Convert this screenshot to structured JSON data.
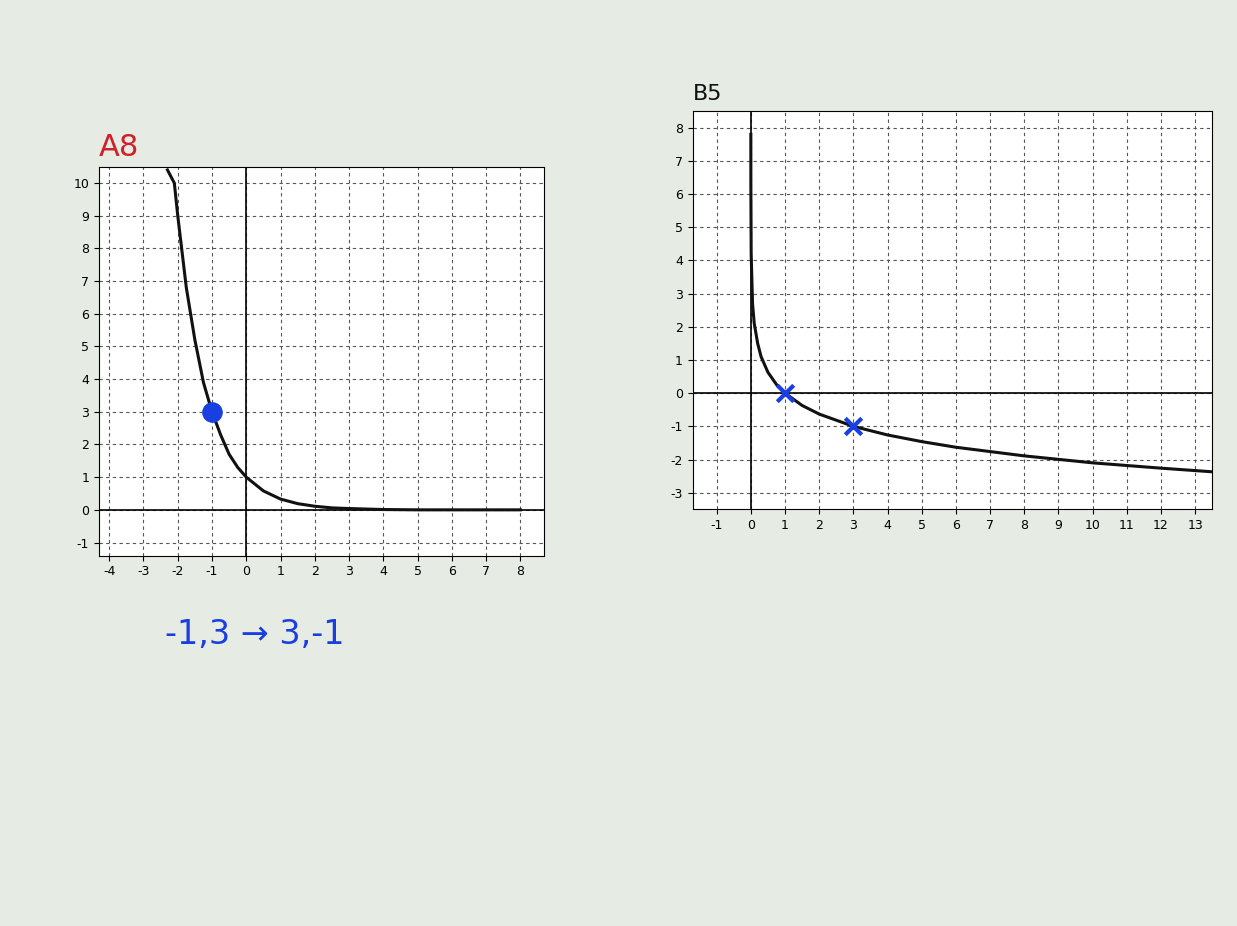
{
  "chart_data": [
    {
      "type": "line",
      "title": "A8",
      "series": [
        {
          "type": "line",
          "color": "#111111",
          "x": [
            -2.3,
            -2.1,
            -2.0,
            -1.75,
            -1.5,
            -1.25,
            -1.0,
            -0.75,
            -0.5,
            -0.25,
            0,
            0.5,
            1,
            1.5,
            2,
            2.5,
            3,
            4,
            5,
            6,
            7,
            8
          ],
          "values": [
            10.4,
            10,
            9,
            6.8,
            5.2,
            3.9,
            3,
            2.3,
            1.7,
            1.3,
            1,
            0.58,
            0.33,
            0.19,
            0.11,
            0.06,
            0.04,
            0.01,
            0,
            0,
            0,
            0
          ]
        },
        {
          "type": "scatter",
          "color": "#1a3fe0",
          "marker": "o",
          "x": [
            -1
          ],
          "values": [
            3
          ]
        }
      ],
      "annotations": [
        "-1,3 → 3,-1"
      ],
      "xlim": [
        -4.3,
        8.7
      ],
      "xticks": [
        -4,
        -3,
        -2,
        -1,
        0,
        1,
        2,
        3,
        4,
        5,
        6,
        7,
        8
      ],
      "ylim": [
        -1.4,
        10.5
      ],
      "yticks": [
        -1,
        0,
        1,
        2,
        3,
        4,
        5,
        6,
        7,
        8,
        9,
        10
      ],
      "grid": true
    },
    {
      "type": "line",
      "title": "B5",
      "series": [
        {
          "type": "line",
          "color": "#111111",
          "x": [
            0.0002,
            0.001,
            0.01,
            0.05,
            0.1,
            0.2,
            0.3,
            0.5,
            0.75,
            1,
            1.5,
            2,
            3,
            4,
            5,
            6,
            8,
            10,
            12,
            13.5
          ],
          "values": [
            7.8,
            6.3,
            4.2,
            2.7,
            2.1,
            1.5,
            1.1,
            0.63,
            0.26,
            0,
            -0.37,
            -0.63,
            -1,
            -1.26,
            -1.46,
            -1.63,
            -1.89,
            -2.1,
            -2.26,
            -2.37
          ]
        },
        {
          "type": "scatter",
          "color": "#1a3fe0",
          "marker": "x",
          "x": [
            1,
            3
          ],
          "values": [
            0,
            -1
          ]
        }
      ],
      "xlim": [
        -1.7,
        13.5
      ],
      "xticks": [
        -1,
        0,
        1,
        2,
        3,
        4,
        5,
        6,
        7,
        8,
        9,
        10,
        11,
        12,
        13
      ],
      "ylim": [
        -3.5,
        8.5
      ],
      "yticks": [
        -3,
        -2,
        -1,
        0,
        1,
        2,
        3,
        4,
        5,
        6,
        7,
        8
      ],
      "grid": true
    }
  ]
}
